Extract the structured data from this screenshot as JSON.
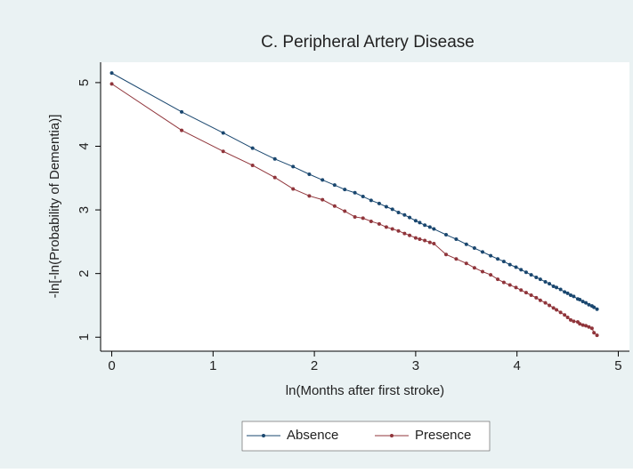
{
  "chart_data": {
    "type": "line",
    "title": "C. Peripheral Artery Disease",
    "x_label": "ln(Months after first stroke)",
    "y_label": "-ln[-ln(Probability of Dementia)]",
    "x": [
      0,
      0.69,
      1.1,
      1.39,
      1.61,
      1.79,
      1.95,
      2.08,
      2.2,
      2.3,
      2.4,
      2.48,
      2.56,
      2.64,
      2.71,
      2.77,
      2.83,
      2.89,
      2.94,
      3.0,
      3.04,
      3.09,
      3.14,
      3.18,
      3.3,
      3.4,
      3.5,
      3.58,
      3.66,
      3.74,
      3.81,
      3.87,
      3.93,
      3.99,
      4.04,
      4.09,
      4.14,
      4.19,
      4.23,
      4.28,
      4.32,
      4.36,
      4.39,
      4.43,
      4.47,
      4.5,
      4.53,
      4.56,
      4.6,
      4.62,
      4.65,
      4.68,
      4.71,
      4.74,
      4.76,
      4.79
    ],
    "series": [
      {
        "name": "Absence",
        "color": "#1a476f",
        "values": [
          5.15,
          4.54,
          4.21,
          3.97,
          3.8,
          3.68,
          3.56,
          3.47,
          3.39,
          3.32,
          3.27,
          3.21,
          3.15,
          3.1,
          3.05,
          3.01,
          2.96,
          2.92,
          2.88,
          2.83,
          2.8,
          2.76,
          2.73,
          2.7,
          2.61,
          2.54,
          2.46,
          2.4,
          2.34,
          2.28,
          2.23,
          2.19,
          2.14,
          2.1,
          2.06,
          2.02,
          1.98,
          1.94,
          1.91,
          1.87,
          1.84,
          1.8,
          1.78,
          1.75,
          1.71,
          1.69,
          1.66,
          1.64,
          1.6,
          1.59,
          1.56,
          1.54,
          1.51,
          1.49,
          1.47,
          1.44
        ]
      },
      {
        "name": "Presence",
        "color": "#90353b",
        "values": [
          4.98,
          4.25,
          3.92,
          3.7,
          3.51,
          3.33,
          3.22,
          3.16,
          3.06,
          2.98,
          2.89,
          2.87,
          2.82,
          2.78,
          2.73,
          2.7,
          2.67,
          2.63,
          2.6,
          2.56,
          2.54,
          2.52,
          2.49,
          2.47,
          2.3,
          2.23,
          2.16,
          2.09,
          2.03,
          1.98,
          1.91,
          1.86,
          1.82,
          1.78,
          1.74,
          1.7,
          1.66,
          1.62,
          1.58,
          1.54,
          1.5,
          1.46,
          1.43,
          1.39,
          1.35,
          1.31,
          1.27,
          1.25,
          1.24,
          1.21,
          1.19,
          1.18,
          1.16,
          1.14,
          1.07,
          1.03
        ]
      }
    ],
    "xlim": [
      -0.11,
      5.11
    ],
    "ylim": [
      0.78,
      5.32
    ],
    "xticks": [
      0,
      1,
      2,
      3,
      4,
      5
    ],
    "yticks": [
      1,
      2,
      3,
      4,
      5
    ],
    "legend": "bottom"
  }
}
